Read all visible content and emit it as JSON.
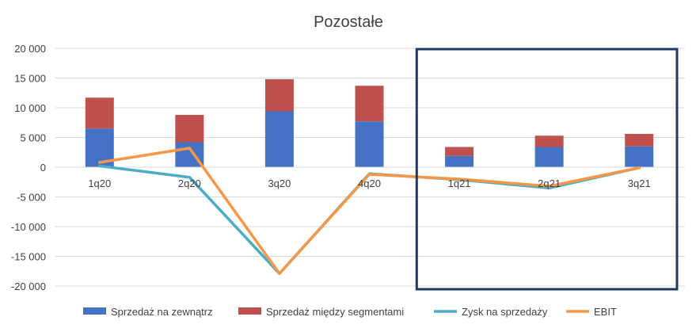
{
  "chart_data": {
    "type": "bar",
    "title": "Pozostałe",
    "categories": [
      "1q20",
      "2q20",
      "3q20",
      "4q20",
      "1q21",
      "2q21",
      "3q21"
    ],
    "ylim": [
      -20000,
      20000
    ],
    "yticks": [
      20000,
      15000,
      10000,
      5000,
      0,
      -5000,
      -10000,
      -15000,
      -20000
    ],
    "ytick_labels": [
      "20 000",
      "15 000",
      "10 000",
      "5 000",
      "0",
      "-5 000",
      "-10 000",
      "-15 000",
      "-20 000"
    ],
    "grid": true,
    "legend_position": "bottom",
    "series": [
      {
        "name": "Sprzedaż na zewnątrz",
        "kind": "bar",
        "stack": "s",
        "color": "#4472C4",
        "values": [
          6500,
          4200,
          9400,
          7700,
          1900,
          3400,
          3500
        ]
      },
      {
        "name": "Sprzedaż między segmentami",
        "kind": "bar",
        "stack": "s",
        "color": "#C0504D",
        "values": [
          5200,
          4600,
          5400,
          6000,
          1500,
          1900,
          2100
        ]
      },
      {
        "name": "Zysk na sprzedaży",
        "kind": "line",
        "color": "#4BACC6",
        "values": [
          200,
          -1700,
          -17900,
          -1100,
          -2100,
          -3500,
          -100
        ]
      },
      {
        "name": "EBIT",
        "kind": "line",
        "color": "#F79646",
        "values": [
          800,
          3200,
          -17900,
          -1200,
          -2000,
          -3200,
          -100
        ]
      }
    ],
    "highlight": {
      "from_category": "1q21",
      "to_category": "3q21",
      "color": "#203864"
    }
  }
}
